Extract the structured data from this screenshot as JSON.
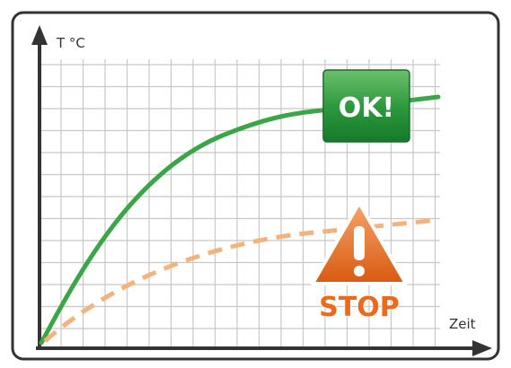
{
  "y_axis_label": "T °C",
  "x_axis_label": "Zeit",
  "ok_badge": "OK!",
  "stop_badge": "STOP"
}
